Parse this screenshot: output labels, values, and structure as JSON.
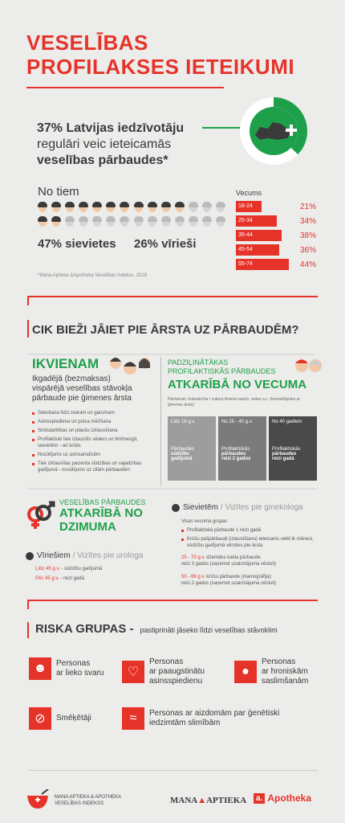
{
  "title": {
    "line1": "VESELĪBAS",
    "line2": "PROFILAKSES IETEIKUMI"
  },
  "stat": {
    "pct": "37% Latvijas iedzīvotāju",
    "line2": "regulāri veic ieteicamās",
    "line3": "veselības pārbaudes*"
  },
  "notiem": "No tiem",
  "women": "47% sievietes",
  "men": "26% vīrieši",
  "footnote": "*Mana Aptieka &Apotheka Veselības indekss, 2018",
  "age": {
    "title": "Vecums",
    "rows": [
      {
        "label": "18-24",
        "value": "21%",
        "frac": 0.21
      },
      {
        "label": "25-34",
        "value": "34%",
        "frac": 0.34
      },
      {
        "label": "35-44",
        "value": "38%",
        "frac": 0.38
      },
      {
        "label": "45-54",
        "value": "36%",
        "frac": 0.36
      },
      {
        "label": "55-74",
        "value": "44%",
        "frac": 0.44
      }
    ]
  },
  "freq": {
    "title": "CIK BIEŽI JĀIET PIE ĀRSTA UZ PĀRBAUDĒM?"
  },
  "everyone": {
    "title": "IKVIENAM",
    "sub1": "Ikgadējā (bezmaksas)",
    "sub2": "vispārējā veselības stāvokļa",
    "sub3": "pārbaude pie ģimenes ārsta",
    "items": [
      "Sekošana līdzi svaram un garumam",
      "Asinsspiediena un pulsa mērīšana",
      "Sirdsdarbības un plaušu izklausīšana",
      "Profilaktiski tiek iztaustīts vēders un limfmezgli, sievietēm - arī krūtis",
      "Nosūtījums uz asinsanalīzēm",
      "Tiek izklausītas pacienta sūdzības un vajadzības gadījumā - nosūtījums uz citām pārbaudēm"
    ]
  },
  "advanced": {
    "t1": "PADZIĻINĀTĀKAS",
    "t2": "PROFILAKTISKĀS PĀRBAUDES",
    "t3": "ATKARĪBĀ NO VECUMA",
    "desc": "Piemēram, holesterīna / cukura līmenis asinīs, redze u.c. (konsultējoties ar ģimenes ārstu)",
    "boxes": [
      {
        "age": "Līdz 18 g.v.",
        "l1": "Pārbaudes",
        "l2": "sūdzību",
        "l3": "gadījumā"
      },
      {
        "age": "No 25 - 40 g.v.",
        "l1": "Profilaktiskās",
        "l2": "pārbaudes",
        "l3": "reizi 2 gados"
      },
      {
        "age": "No 40 gadiem",
        "l1": "Profilaktiskās",
        "l2": "pārbaudes",
        "l3": "reizi gadā"
      }
    ]
  },
  "gender": {
    "t1": "VESELĪBAS PĀRBAUDES",
    "t2": "ATKARĪBĀ NO",
    "t3": "DZIMUMA",
    "men_title": "Vīriešiem",
    "men_sub": "/ Vizītes pie urologa",
    "men_l1a": "Līdz 45 g.v.",
    "men_l1b": " - sūdzību gadījumā",
    "men_l2a": "Pēc 45 g.v.",
    "men_l2b": " - reizi gadā",
    "women_title": "Sievietēm",
    "women_sub": "/ Vizītes pie ginekologa",
    "women_groups": "Visas vecuma grupas",
    "women_i1": "Profilaktiskā pārbaude 1 reizi gadā",
    "women_i2": "Krūšu pašpārbaudi (izt​austīšanu) ieteicams veikt ik mēnesi, sūdzību gadījumā vērsties pie ārsta",
    "women_a1": "25 - 70 g.v.",
    "women_a1b": " dzemdes kakla pārbaude:",
    "women_a1c": "reizi 3 gados (saņemot uzaicinājuma vēstuli)",
    "women_a2": "50 - 68 g.v.",
    "women_a2b": " krūšu pārbaude (mamogrāfija):",
    "women_a2c": "reizi 2 gados (saņemot uzaicinājuma vēstuli)"
  },
  "risk": {
    "title": "RISKA GRUPAS -",
    "sub": "pastiprināti jāseko līdzi veselības stāvoklim",
    "items": [
      {
        "l1": "Personas",
        "l2": "ar lieko svaru",
        "icon": "person-icon"
      },
      {
        "l1": "Personas",
        "l2": "ar paaugstinātu",
        "l3": "asinsspiedienu",
        "icon": "heartbeat-icon"
      },
      {
        "l1": "Personas",
        "l2": "ar hroniskām",
        "l3": "saslimšanām",
        "icon": "pill-icon"
      },
      {
        "l1": "Smēķētāji",
        "icon": "cigarette-icon"
      },
      {
        "l1": "Personas ar aizdomām par ģenētiski",
        "l2": "iedzimtām slimībām",
        "icon": "dna-icon"
      }
    ]
  },
  "footer": {
    "brand1": "MANA APTIEKA & APOTHEKA",
    "brand2": "VESELĪBAS INDEKSS",
    "logo1a": "MANA",
    "logo1b": "APTIEKA",
    "logo2": "Apotheka",
    "logo2mark": "a."
  },
  "colors": {
    "red": "#e6332a",
    "green": "#1ea04b",
    "gray": "#9d9d9d"
  }
}
